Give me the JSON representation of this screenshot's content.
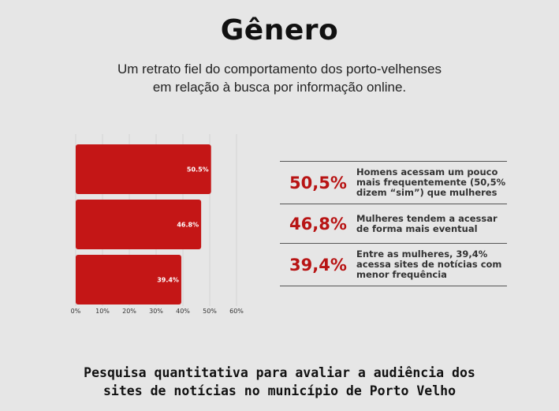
{
  "header": {
    "title": "Gênero",
    "subtitle_line1": "Um retrato fiel do comportamento dos porto-velhenses",
    "subtitle_line2": "em relação à busca por informação online."
  },
  "chart_data": {
    "type": "bar",
    "orientation": "horizontal",
    "values": [
      50.5,
      46.8,
      39.4
    ],
    "data_labels": [
      "50.5%",
      "46.8%",
      "39.4%"
    ],
    "xlim": [
      0,
      60
    ],
    "x_ticks": [
      "0%",
      "10%",
      "20%",
      "30%",
      "40%",
      "50%",
      "60%"
    ],
    "grid": true,
    "bar_color": "#c41616"
  },
  "stats": [
    {
      "value": "50,5%",
      "text_lines": [
        "Homens acessam um pouco",
        "mais frequentemente (50,5%",
        "dizem “sim”) que mulheres"
      ]
    },
    {
      "value": "46,8%",
      "text_lines": [
        "Mulheres tendem a acessar",
        "de forma mais eventual"
      ]
    },
    {
      "value": "39,4%",
      "text_lines": [
        "Entre as mulheres, 39,4%",
        "acessa sites de notícias com",
        "menor frequência"
      ]
    }
  ],
  "footer": {
    "line1": "Pesquisa quantitativa para avaliar a audiência dos",
    "line2": "sites de notícias no município de Porto Velho"
  }
}
